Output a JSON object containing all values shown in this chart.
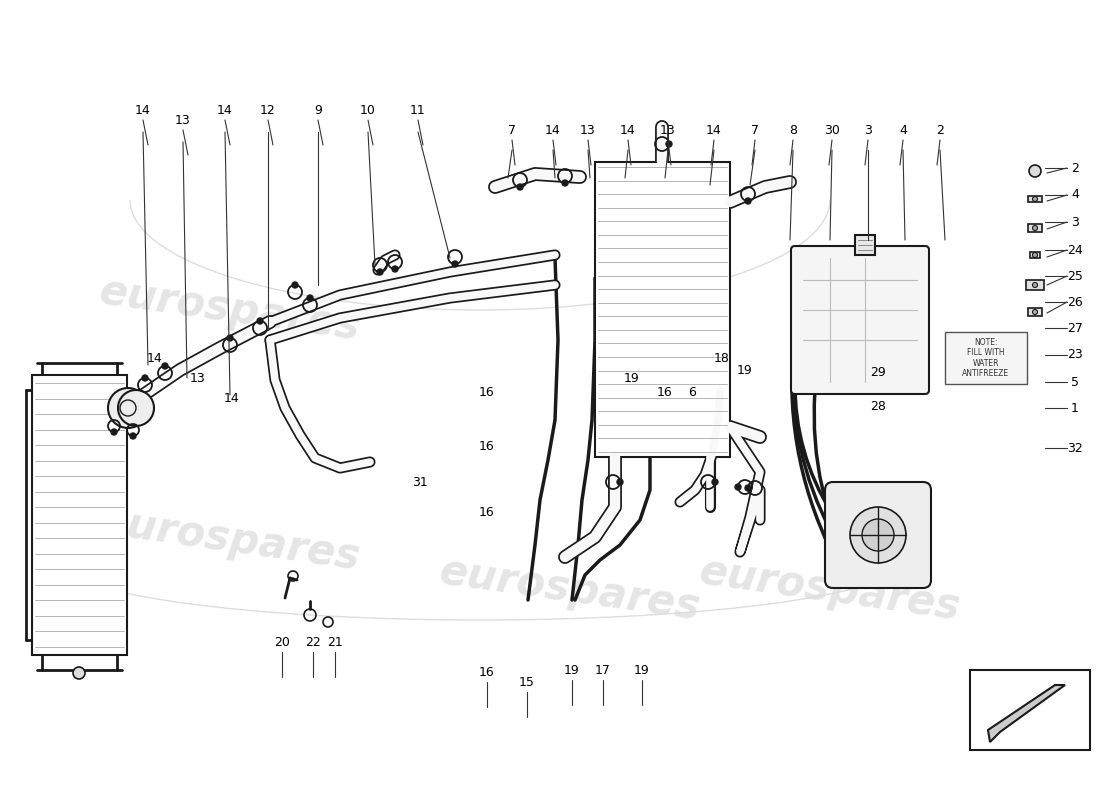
{
  "bg_color": "#ffffff",
  "line_color": "#1a1a1a",
  "watermark_color": "#cccccc",
  "note_text": "NOTE:\nFILL WITH\nWATER\nANTIFREEZE",
  "callouts_top_left": [
    [
      143,
      110,
      "14"
    ],
    [
      183,
      120,
      "13"
    ],
    [
      225,
      110,
      "14"
    ],
    [
      268,
      110,
      "12"
    ],
    [
      318,
      110,
      "9"
    ],
    [
      368,
      110,
      "10"
    ],
    [
      418,
      110,
      "11"
    ]
  ],
  "callouts_top_mid": [
    [
      512,
      130,
      "7"
    ],
    [
      553,
      130,
      "14"
    ],
    [
      588,
      130,
      "13"
    ],
    [
      628,
      130,
      "14"
    ],
    [
      668,
      130,
      "13"
    ]
  ],
  "callouts_top_right": [
    [
      714,
      130,
      "14"
    ],
    [
      755,
      130,
      "7"
    ],
    [
      793,
      130,
      "8"
    ],
    [
      832,
      130,
      "30"
    ],
    [
      868,
      130,
      "3"
    ],
    [
      903,
      130,
      "4"
    ],
    [
      940,
      130,
      "2"
    ]
  ],
  "callouts_right_col": [
    [
      1075,
      168,
      "2"
    ],
    [
      1075,
      195,
      "4"
    ],
    [
      1075,
      222,
      "3"
    ],
    [
      1075,
      250,
      "24"
    ],
    [
      1075,
      276,
      "25"
    ],
    [
      1075,
      302,
      "26"
    ],
    [
      1075,
      328,
      "27"
    ],
    [
      1075,
      355,
      "23"
    ],
    [
      1075,
      382,
      "5"
    ],
    [
      1075,
      408,
      "1"
    ],
    [
      1075,
      448,
      "32"
    ]
  ],
  "callouts_mid": [
    [
      155,
      358,
      "14"
    ],
    [
      198,
      378,
      "13"
    ],
    [
      232,
      398,
      "14"
    ],
    [
      487,
      393,
      "16"
    ],
    [
      420,
      482,
      "31"
    ],
    [
      487,
      447,
      "16"
    ],
    [
      487,
      512,
      "16"
    ],
    [
      632,
      378,
      "19"
    ],
    [
      665,
      393,
      "16"
    ],
    [
      692,
      393,
      "6"
    ],
    [
      722,
      358,
      "18"
    ],
    [
      745,
      370,
      "19"
    ],
    [
      878,
      372,
      "29"
    ],
    [
      878,
      407,
      "28"
    ]
  ],
  "callouts_bottom": [
    [
      282,
      642,
      "20"
    ],
    [
      313,
      642,
      "22"
    ],
    [
      335,
      642,
      "21"
    ],
    [
      487,
      672,
      "16"
    ],
    [
      527,
      682,
      "15"
    ],
    [
      572,
      670,
      "19"
    ],
    [
      603,
      670,
      "17"
    ],
    [
      642,
      670,
      "19"
    ]
  ]
}
